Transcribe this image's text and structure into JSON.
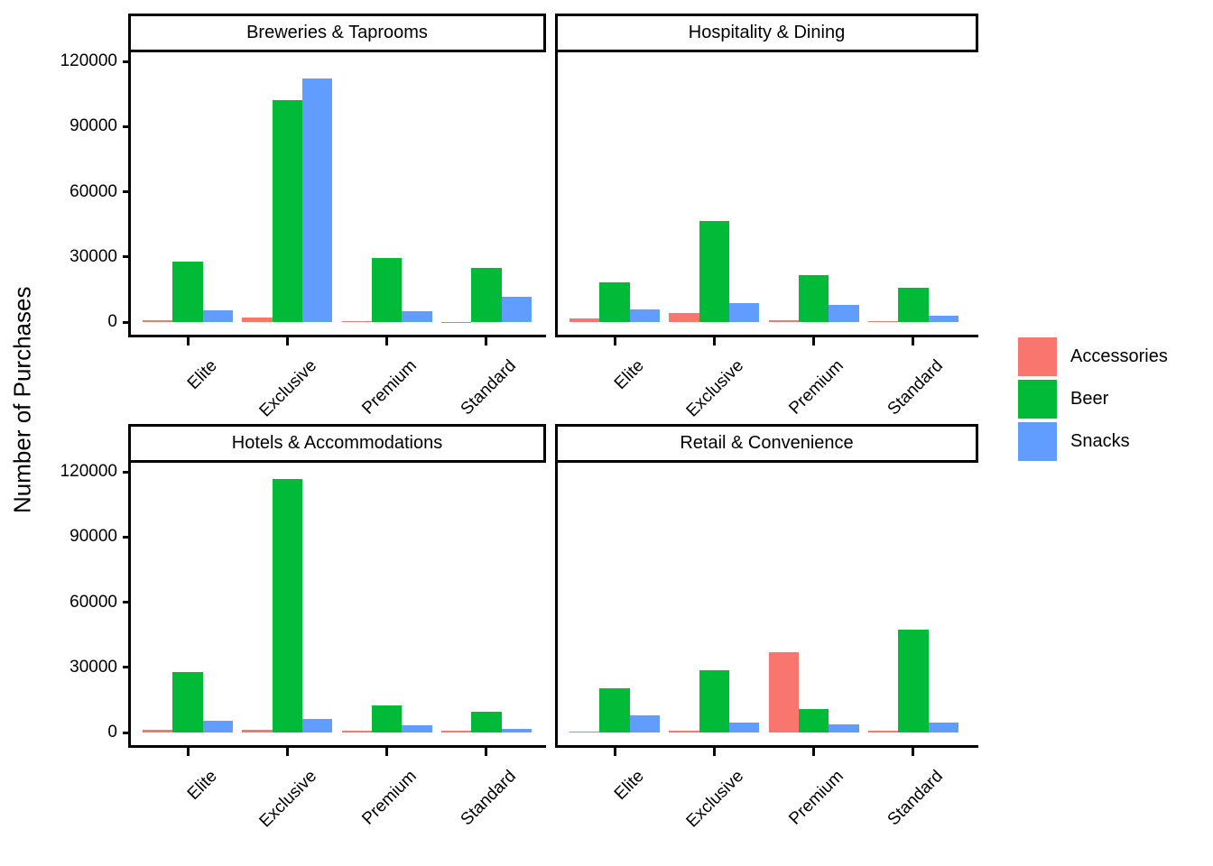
{
  "chart_data": {
    "type": "bar",
    "title": "",
    "ylabel": "Number of Purchases",
    "xlabel": "",
    "categories": [
      "Elite",
      "Exclusive",
      "Premium",
      "Standard"
    ],
    "yticks": [
      0,
      30000,
      60000,
      90000,
      120000
    ],
    "ylim": [
      0,
      126000
    ],
    "grid": false,
    "legend": {
      "position": "right",
      "items": [
        {
          "label": "Accessories",
          "color": "#F8766D"
        },
        {
          "label": "Beer",
          "color": "#00BA38"
        },
        {
          "label": "Snacks",
          "color": "#619CFF"
        }
      ]
    },
    "panels": [
      {
        "title": "Breweries & Taprooms",
        "series": [
          {
            "name": "Accessories",
            "values": [
              900,
              2200,
              500,
              200
            ]
          },
          {
            "name": "Beer",
            "values": [
              28000,
              102000,
              29300,
              24900
            ]
          },
          {
            "name": "Snacks",
            "values": [
              5600,
              112000,
              4900,
              11800
            ]
          }
        ]
      },
      {
        "title": "Hospitality & Dining",
        "series": [
          {
            "name": "Accessories",
            "values": [
              1700,
              4000,
              800,
              300
            ]
          },
          {
            "name": "Beer",
            "values": [
              18300,
              46700,
              21500,
              15800
            ]
          },
          {
            "name": "Snacks",
            "values": [
              5800,
              8900,
              7800,
              2900
            ]
          }
        ]
      },
      {
        "title": "Hotels & Accommodations",
        "series": [
          {
            "name": "Accessories",
            "values": [
              1300,
              1300,
              800,
              800
            ]
          },
          {
            "name": "Beer",
            "values": [
              28000,
              116500,
              12600,
              9600
            ]
          },
          {
            "name": "Snacks",
            "values": [
              5500,
              6400,
              3300,
              1800
            ]
          }
        ]
      },
      {
        "title": "Retail & Convenience",
        "series": [
          {
            "name": "Accessories",
            "values": [
              400,
              800,
              36800,
              800
            ]
          },
          {
            "name": "Beer",
            "values": [
              20400,
              28800,
              10700,
              47500
            ]
          },
          {
            "name": "Snacks",
            "values": [
              7900,
              4400,
              3800,
              4500
            ]
          }
        ]
      }
    ]
  }
}
